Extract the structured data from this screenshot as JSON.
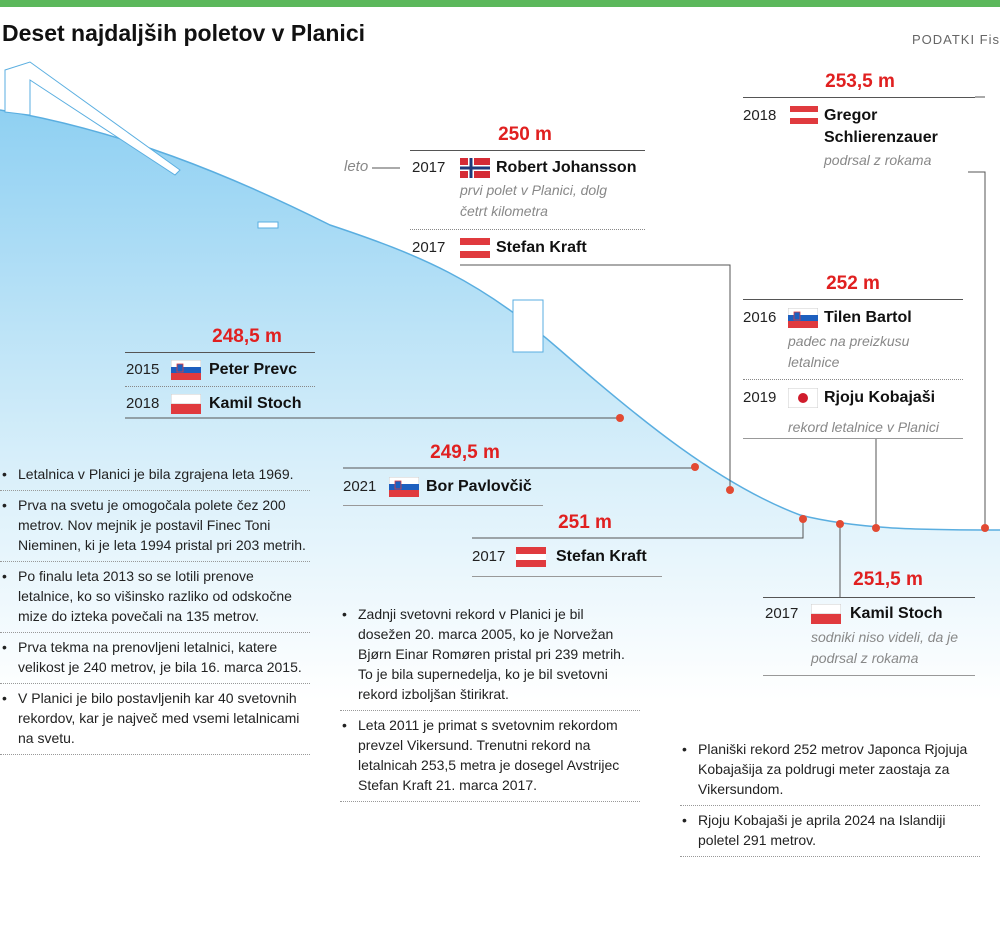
{
  "header": {
    "title": "Deset najdaljših poletov v Planici",
    "source": "PODATKI Fis"
  },
  "axis_label": "leto",
  "records": [
    {
      "distance": "253,5 m",
      "entries": [
        {
          "year": "2018",
          "name": "Gregor Schlierenzauer",
          "note": "podrsal z rokama"
        }
      ]
    },
    {
      "distance": "250 m",
      "entries": [
        {
          "year": "2017",
          "name": "Robert Johansson",
          "note": "prvi polet v Planici, dolg četrt kilometra"
        },
        {
          "year": "2017",
          "name": "Stefan Kraft"
        }
      ]
    },
    {
      "distance": "248,5 m",
      "entries": [
        {
          "year": "2015",
          "name": "Peter Prevc"
        },
        {
          "year": "2018",
          "name": "Kamil Stoch"
        }
      ]
    },
    {
      "distance": "249,5 m",
      "entries": [
        {
          "year": "2021",
          "name": "Bor Pavlovčič"
        }
      ]
    },
    {
      "distance": "251 m",
      "entries": [
        {
          "year": "2017",
          "name": "Stefan Kraft"
        }
      ]
    },
    {
      "distance": "252 m",
      "entries": [
        {
          "year": "2016",
          "name": "Tilen Bartol",
          "note": "padec na preizkusu letalnice"
        },
        {
          "year": "2019",
          "name": "Rjoju Kobajaši",
          "note": "rekord letalnice v Planici"
        }
      ]
    },
    {
      "distance": "251,5 m",
      "entries": [
        {
          "year": "2017",
          "name": "Kamil Stoch",
          "note": "sodniki niso videli, da je podrsal z rokama"
        }
      ]
    }
  ],
  "notes": {
    "left": [
      "Letalnica v Planici je bila zgrajena leta 1969.",
      "Prva na svetu je omogočala polete čez 200 metrov. Nov mejnik je postavil Finec Toni Nieminen, ki je leta 1994 pristal pri 203 metrih.",
      "Po finalu leta 2013 so se lotili prenove letalnice, ko so višinsko razliko od odskočne mize do izteka povečali na 135 metrov.",
      "Prva tekma na prenovljeni letalnici, katere velikost je 240 metrov, je bila 16. marca 2015.",
      "V Planici je bilo postavljenih kar 40 svetovnih rekordov, kar je največ med vsemi letalnicami na svetu."
    ],
    "middle": [
      "Zadnji svetovni rekord v Planici je bil dosežen 20. marca 2005, ko je Norvežan Bjørn Einar Romøren pristal pri 239 metrih. To je bila supernedelja, ko je bil svetovni rekord izboljšan štirikrat.",
      "Leta 2011 je primat s svetovnim rekordom prevzel Vikersund. Trenutni rekord na letalnicah 253,5 metra je dosegel Avstrijec Stefan Kraft 21. marca 2017."
    ],
    "right": [
      "Planiški rekord 252 metrov Japonca Rjojuja Kobajašija za poldrugi meter zaostaja za Vikersundom.",
      "Rjoju Kobajaši je aprila 2024 na Islandiji poletel 291 metrov."
    ]
  }
}
